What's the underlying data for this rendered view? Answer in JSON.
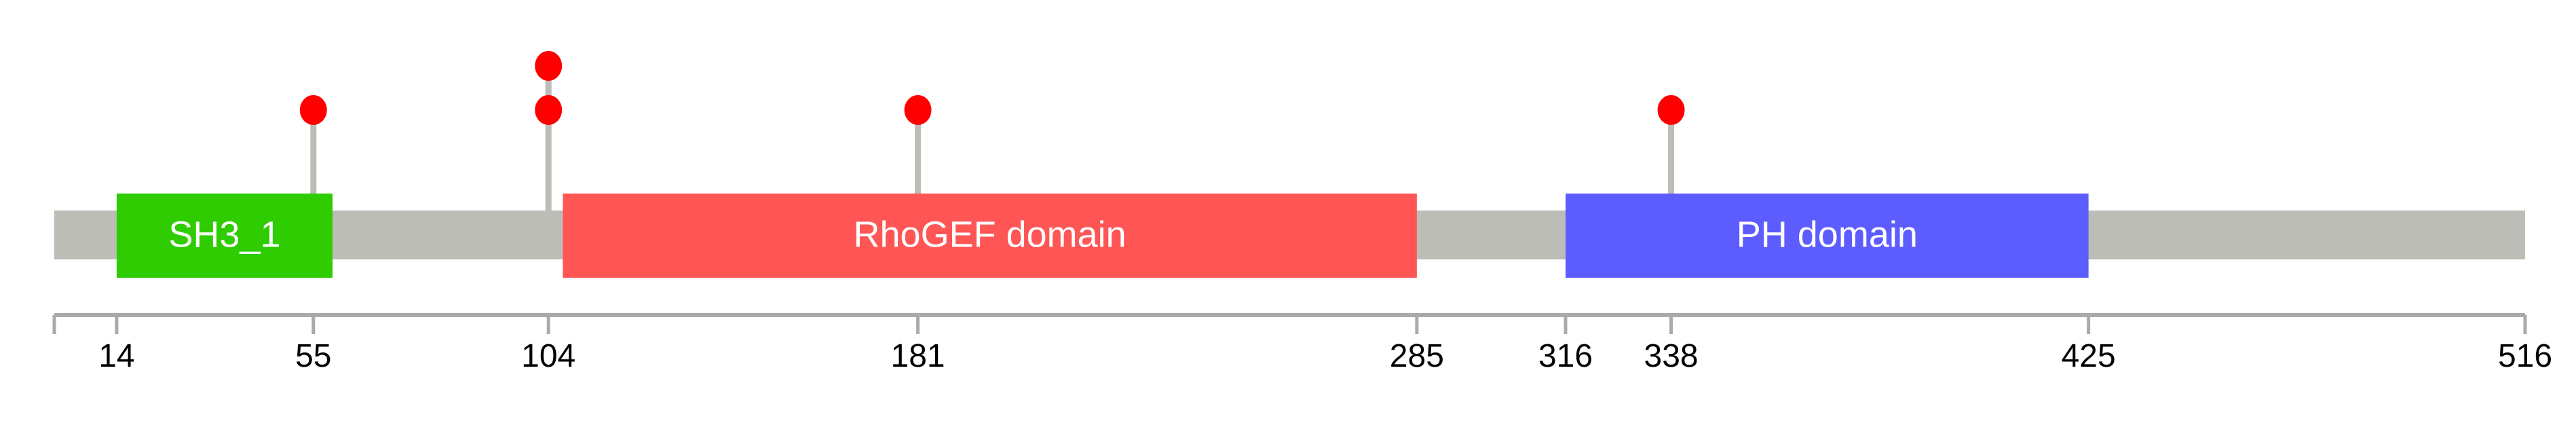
{
  "chart_data": {
    "type": "lollipop",
    "protein_length": 516,
    "xlim": [
      1,
      516
    ],
    "backbone_color": "#BBBDB6",
    "axis_color": "#AAAAAA",
    "domains": [
      {
        "name": "SH3_1",
        "start": 14,
        "end": 59,
        "color": "#2ECC00"
      },
      {
        "name": "RhoGEF domain",
        "start": 107,
        "end": 285,
        "color": "#FF5555"
      },
      {
        "name": "PH domain",
        "start": 316,
        "end": 425,
        "color": "#5C5CFF"
      }
    ],
    "mutations": [
      {
        "position": 55,
        "count": 1
      },
      {
        "position": 104,
        "count": 2
      },
      {
        "position": 181,
        "count": 1
      },
      {
        "position": 338,
        "count": 1
      }
    ],
    "mutation_color": "#FF0000",
    "tick_labels": [
      "14",
      "55",
      "104",
      "181",
      "285",
      "316",
      "338",
      "425",
      "516"
    ]
  }
}
